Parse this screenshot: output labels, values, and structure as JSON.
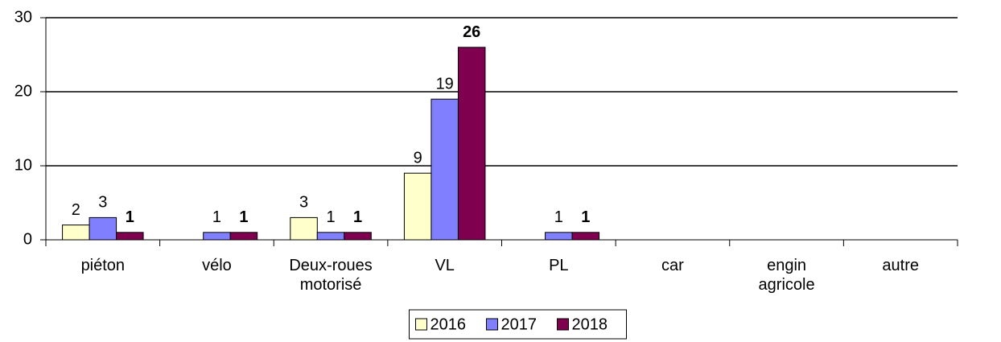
{
  "chart_data": {
    "type": "bar",
    "categories": [
      "piéton",
      "vélo",
      "Deux-roues motorisé",
      "VL",
      "PL",
      "car",
      "engin agricole",
      "autre"
    ],
    "series": [
      {
        "name": "2016",
        "color": "#ffffcc",
        "values": [
          2,
          null,
          3,
          9,
          null,
          null,
          null,
          null
        ]
      },
      {
        "name": "2017",
        "color": "#8080ff",
        "values": [
          3,
          1,
          1,
          19,
          1,
          null,
          null,
          null
        ]
      },
      {
        "name": "2018",
        "color": "#800050",
        "values": [
          1,
          1,
          1,
          26,
          1,
          null,
          null,
          null
        ],
        "label_weight": "bold"
      }
    ],
    "ylim": [
      0,
      30
    ],
    "yticks": [
      0,
      10,
      20,
      30
    ],
    "grid": true,
    "legend": "bottom"
  }
}
